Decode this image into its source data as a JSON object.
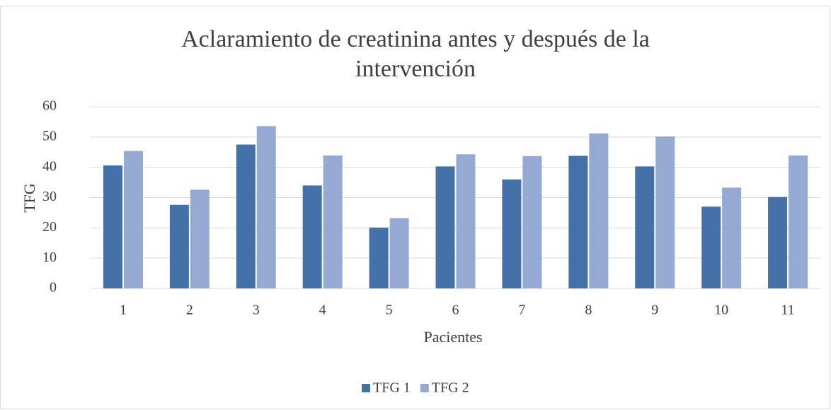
{
  "chart_data": {
    "type": "bar",
    "title": "Aclaramiento de creatinina antes y después de la intervención",
    "x_label": "Pacientes",
    "y_label": "TFG",
    "categories": [
      "1",
      "2",
      "3",
      "4",
      "5",
      "6",
      "7",
      "8",
      "9",
      "10",
      "11"
    ],
    "series": [
      {
        "name": "TFG 1",
        "color": "#4472a8",
        "values": [
          40.6,
          27.6,
          47.5,
          34,
          20.1,
          40.3,
          36,
          43.8,
          40.3,
          27,
          30.2
        ]
      },
      {
        "name": "TFG 2",
        "color": "#95aad3",
        "values": [
          45.4,
          32.6,
          53.6,
          43.9,
          23.2,
          44.3,
          43.7,
          51.2,
          50.2,
          33.3,
          43.9
        ]
      }
    ],
    "ylim": [
      0,
      60
    ],
    "yticks": [
      0,
      10,
      20,
      30,
      40,
      50,
      60
    ],
    "grid": true,
    "legend": "bottom"
  }
}
